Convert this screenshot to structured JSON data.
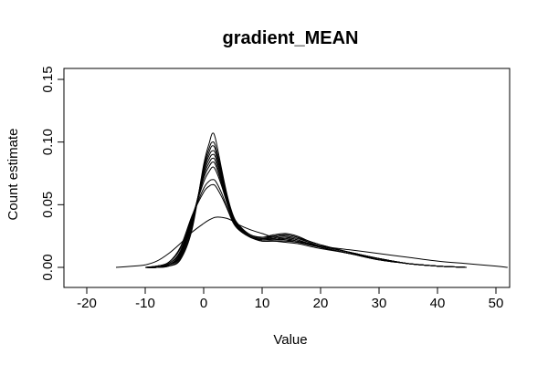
{
  "chart_data": {
    "type": "line",
    "title": "gradient_MEAN",
    "xlabel": "Value",
    "ylabel": "Count estimate",
    "xlim": [
      -20,
      50
    ],
    "ylim": [
      0,
      0.15
    ],
    "x_ticks": [
      "-20",
      "-10",
      "0",
      "10",
      "20",
      "30",
      "40",
      "50"
    ],
    "y_ticks": [
      "0.00",
      "0.05",
      "0.10",
      "0.15"
    ],
    "grid": false,
    "legend": "none",
    "line_color": "#000000",
    "series": [
      {
        "x": [
          -10,
          -8,
          -6,
          -4,
          -2,
          0,
          1,
          1.5,
          2,
          3,
          4,
          5,
          6,
          8,
          10,
          12,
          14,
          16,
          18,
          20,
          25,
          30,
          35,
          40,
          45
        ],
        "values": [
          0.0,
          0.0,
          0.001,
          0.006,
          0.03,
          0.082,
          0.1,
          0.107,
          0.103,
          0.08,
          0.058,
          0.042,
          0.034,
          0.026,
          0.024,
          0.026,
          0.027,
          0.025,
          0.021,
          0.018,
          0.012,
          0.007,
          0.003,
          0.001,
          0.0
        ]
      },
      {
        "x": [
          -10,
          -8,
          -6,
          -4,
          -2,
          0,
          1,
          1.5,
          2,
          3,
          4,
          5,
          6,
          8,
          10,
          12,
          14,
          16,
          18,
          20,
          25,
          30,
          35,
          40,
          45
        ],
        "values": [
          0.0,
          0.0,
          0.001,
          0.007,
          0.032,
          0.08,
          0.096,
          0.1,
          0.097,
          0.078,
          0.057,
          0.041,
          0.033,
          0.026,
          0.024,
          0.025,
          0.026,
          0.024,
          0.021,
          0.018,
          0.012,
          0.007,
          0.003,
          0.001,
          0.0
        ]
      },
      {
        "x": [
          -10,
          -8,
          -6,
          -4,
          -2,
          0,
          1,
          1.5,
          2,
          3,
          4,
          5,
          6,
          8,
          10,
          12,
          14,
          16,
          18,
          20,
          25,
          30,
          35,
          40,
          45
        ],
        "values": [
          0.0,
          0.0,
          0.002,
          0.008,
          0.034,
          0.078,
          0.093,
          0.097,
          0.094,
          0.076,
          0.056,
          0.041,
          0.033,
          0.025,
          0.023,
          0.025,
          0.026,
          0.024,
          0.02,
          0.017,
          0.012,
          0.007,
          0.003,
          0.001,
          0.0
        ]
      },
      {
        "x": [
          -10,
          -8,
          -6,
          -4,
          -2,
          0,
          1,
          1.5,
          2,
          3,
          4,
          5,
          6,
          8,
          10,
          12,
          14,
          16,
          18,
          20,
          25,
          30,
          35,
          40,
          45
        ],
        "values": [
          0.0,
          0.0,
          0.002,
          0.009,
          0.036,
          0.077,
          0.09,
          0.093,
          0.091,
          0.074,
          0.055,
          0.04,
          0.032,
          0.025,
          0.023,
          0.024,
          0.025,
          0.023,
          0.02,
          0.017,
          0.012,
          0.007,
          0.003,
          0.001,
          0.0
        ]
      },
      {
        "x": [
          -10,
          -8,
          -6,
          -4,
          -2,
          0,
          1,
          1.5,
          2,
          3,
          4,
          5,
          6,
          8,
          10,
          12,
          14,
          16,
          18,
          20,
          25,
          30,
          35,
          40,
          45
        ],
        "values": [
          0.0,
          0.0,
          0.002,
          0.01,
          0.037,
          0.075,
          0.087,
          0.09,
          0.088,
          0.072,
          0.054,
          0.04,
          0.032,
          0.025,
          0.023,
          0.023,
          0.024,
          0.022,
          0.019,
          0.017,
          0.012,
          0.007,
          0.003,
          0.001,
          0.0
        ]
      },
      {
        "x": [
          -10,
          -8,
          -6,
          -4,
          -2,
          0,
          1,
          1.5,
          2,
          3,
          4,
          5,
          6,
          8,
          10,
          12,
          14,
          16,
          18,
          20,
          25,
          30,
          35,
          40,
          45
        ],
        "values": [
          0.0,
          0.0,
          0.002,
          0.011,
          0.038,
          0.073,
          0.084,
          0.087,
          0.085,
          0.07,
          0.053,
          0.039,
          0.031,
          0.024,
          0.022,
          0.023,
          0.024,
          0.022,
          0.019,
          0.016,
          0.011,
          0.007,
          0.003,
          0.001,
          0.0
        ]
      },
      {
        "x": [
          -10,
          -8,
          -6,
          -4,
          -2,
          0,
          1,
          1.5,
          2,
          3,
          4,
          5,
          6,
          8,
          10,
          12,
          14,
          16,
          18,
          20,
          25,
          30,
          35,
          40,
          45
        ],
        "values": [
          0.0,
          0.0,
          0.003,
          0.012,
          0.039,
          0.071,
          0.081,
          0.084,
          0.082,
          0.068,
          0.052,
          0.039,
          0.031,
          0.024,
          0.022,
          0.022,
          0.023,
          0.021,
          0.019,
          0.016,
          0.011,
          0.007,
          0.003,
          0.001,
          0.0
        ]
      },
      {
        "x": [
          -10,
          -8,
          -6,
          -4,
          -2,
          0,
          1,
          1.5,
          2,
          3,
          4,
          5,
          6,
          8,
          10,
          12,
          14,
          16,
          18,
          20,
          25,
          30,
          35,
          40,
          45
        ],
        "values": [
          0.0,
          0.001,
          0.003,
          0.013,
          0.04,
          0.068,
          0.077,
          0.08,
          0.078,
          0.066,
          0.051,
          0.038,
          0.031,
          0.024,
          0.022,
          0.022,
          0.022,
          0.021,
          0.018,
          0.016,
          0.011,
          0.006,
          0.003,
          0.001,
          0.0
        ]
      },
      {
        "x": [
          -10,
          -8,
          -6,
          -4,
          -2,
          0,
          1,
          1.5,
          2,
          3,
          4,
          5,
          6,
          8,
          10,
          12,
          14,
          16,
          18,
          20,
          25,
          30,
          35,
          40,
          45
        ],
        "values": [
          0.0,
          0.001,
          0.004,
          0.015,
          0.041,
          0.063,
          0.069,
          0.07,
          0.069,
          0.06,
          0.048,
          0.037,
          0.03,
          0.024,
          0.021,
          0.021,
          0.021,
          0.02,
          0.018,
          0.016,
          0.011,
          0.006,
          0.003,
          0.001,
          0.0
        ]
      },
      {
        "x": [
          -10,
          -8,
          -6,
          -4,
          -2,
          0,
          1,
          1.5,
          2,
          3,
          4,
          5,
          6,
          8,
          10,
          12,
          14,
          16,
          18,
          20,
          25,
          30,
          35,
          40,
          45
        ],
        "values": [
          0.0,
          0.001,
          0.004,
          0.016,
          0.041,
          0.06,
          0.065,
          0.066,
          0.065,
          0.057,
          0.047,
          0.036,
          0.03,
          0.024,
          0.021,
          0.021,
          0.02,
          0.019,
          0.017,
          0.015,
          0.011,
          0.006,
          0.003,
          0.001,
          0.0
        ]
      },
      {
        "x": [
          -15,
          -12,
          -10,
          -8,
          -6,
          -4,
          -2,
          0,
          1,
          2,
          3,
          4,
          5,
          6,
          8,
          10,
          12,
          15,
          20,
          25,
          30,
          35,
          40,
          45,
          50,
          52
        ],
        "values": [
          0.0,
          0.001,
          0.002,
          0.005,
          0.011,
          0.019,
          0.028,
          0.035,
          0.038,
          0.04,
          0.04,
          0.039,
          0.037,
          0.034,
          0.03,
          0.027,
          0.024,
          0.021,
          0.017,
          0.014,
          0.011,
          0.008,
          0.005,
          0.003,
          0.001,
          0.0
        ]
      }
    ]
  }
}
